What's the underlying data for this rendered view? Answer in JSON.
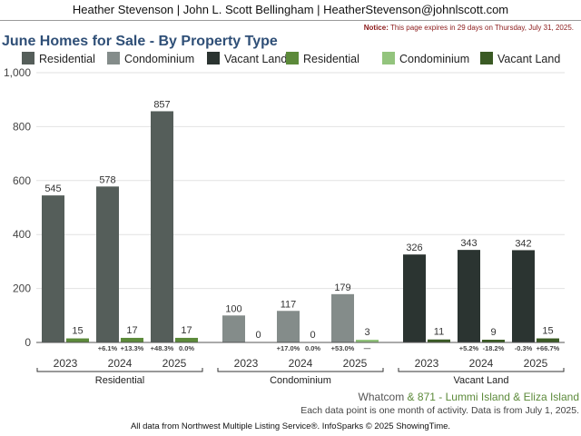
{
  "header": {
    "agent_line": "Heather Stevenson | John L. Scott Bellingham | HeatherStevenson@johnlscott.com"
  },
  "notice": {
    "label": "Notice:",
    "text": "This page expires in 29 days on Thursday, July 31, 2025."
  },
  "colors": {
    "residential": "#555e5a",
    "condominium": "#848c8a",
    "vacant_land": "#2b3431",
    "residential_green": "#5c8a3a",
    "condominium_green": "#93c47d",
    "vacant_land_green": "#3a5a24"
  },
  "chart_data": {
    "type": "bar",
    "title": "June Homes for Sale - By Property Type",
    "ylim": [
      0,
      1000
    ],
    "yticks": [
      "0",
      "200",
      "400",
      "600",
      "800",
      "1,000"
    ],
    "ytick_values": [
      0,
      200,
      400,
      600,
      800,
      1000
    ],
    "grid": true,
    "legend_placement": "top",
    "legend": [
      {
        "name": "Residential",
        "color": "#555e5a"
      },
      {
        "name": "Condominium",
        "color": "#848c8a"
      },
      {
        "name": "Vacant Land",
        "color": "#2b3431"
      },
      {
        "name": "Residential",
        "color": "#5c8a3a"
      },
      {
        "name": "Condominium",
        "color": "#93c47d"
      },
      {
        "name": "Vacant Land",
        "color": "#3a5a24"
      }
    ],
    "groups": [
      {
        "name": "Residential",
        "color": "#555e5a",
        "green": "#5c8a3a",
        "years": [
          "2023",
          "2024",
          "2025"
        ],
        "values": [
          545,
          578,
          857
        ],
        "values_secondary": [
          15,
          17,
          17
        ],
        "changes": [
          "",
          "+6.1%",
          "+48.3%"
        ],
        "changes_secondary": [
          "",
          "+13.3%",
          "0.0%"
        ]
      },
      {
        "name": "Condominium",
        "color": "#848c8a",
        "green": "#93c47d",
        "years": [
          "2023",
          "2024",
          "2025"
        ],
        "values": [
          100,
          117,
          179
        ],
        "values_secondary": [
          0,
          0,
          3
        ],
        "changes": [
          "",
          "+17.0%",
          "+53.0%"
        ],
        "changes_secondary": [
          "",
          "0.0%",
          "—"
        ]
      },
      {
        "name": "Vacant Land",
        "color": "#2b3431",
        "green": "#3a5a24",
        "years": [
          "2023",
          "2024",
          "2025"
        ],
        "values": [
          326,
          343,
          342
        ],
        "values_secondary": [
          11,
          9,
          15
        ],
        "changes": [
          "",
          "+5.2%",
          "-0.3%"
        ],
        "changes_secondary": [
          "",
          "-18.2%",
          "+66.7%"
        ]
      }
    ]
  },
  "region": {
    "area": "Whatcom",
    "amp": "&",
    "subarea": "871 - Lummi Island & Eliza Island"
  },
  "data_note": "Each data point is one month of activity. Data is from July 1, 2025.",
  "footer": {
    "source": "All data from Northwest Multiple Listing Service®. InfoSparks © 2025 ShowingTime."
  }
}
